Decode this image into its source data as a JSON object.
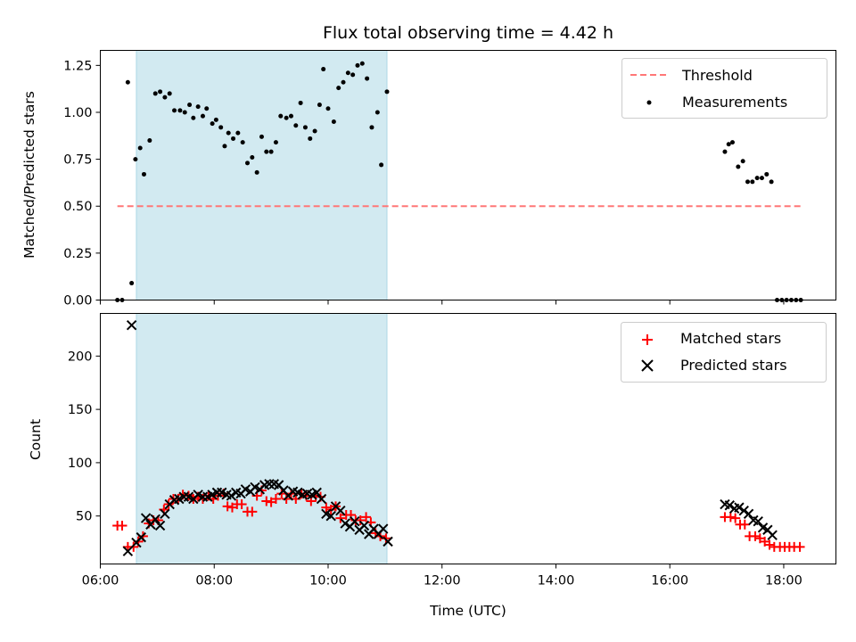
{
  "chart_data": [
    {
      "type": "scatter",
      "title": "Flux total observing time = 4.42 h",
      "xlabel": "",
      "ylabel": "Matched/Predicted stars",
      "xlim": [
        "06:00",
        "18:55"
      ],
      "ylim": [
        0,
        1.33
      ],
      "yticks": [
        "0.00",
        "0.25",
        "0.50",
        "0.75",
        "1.00",
        "1.25"
      ],
      "shaded_span": [
        "06:38",
        "11:02"
      ],
      "grid": false,
      "legend_position": "top-right",
      "threshold": {
        "name": "Threshold",
        "value": 0.5,
        "x_range": [
          "06:18",
          "18:18"
        ],
        "color": "#ff7777"
      },
      "series": [
        {
          "name": "Measurements",
          "color": "#000000",
          "points": [
            [
              "06:18",
              0.0
            ],
            [
              "06:23",
              0.0
            ],
            [
              "06:29",
              1.16
            ],
            [
              "06:33",
              0.09
            ],
            [
              "06:37",
              0.75
            ],
            [
              "06:42",
              0.81
            ],
            [
              "06:46",
              0.67
            ],
            [
              "06:52",
              0.85
            ],
            [
              "06:58",
              1.1
            ],
            [
              "07:03",
              1.11
            ],
            [
              "07:08",
              1.08
            ],
            [
              "07:13",
              1.1
            ],
            [
              "07:18",
              1.01
            ],
            [
              "07:24",
              1.01
            ],
            [
              "07:29",
              1.0
            ],
            [
              "07:34",
              1.04
            ],
            [
              "07:38",
              0.97
            ],
            [
              "07:43",
              1.03
            ],
            [
              "07:48",
              0.98
            ],
            [
              "07:52",
              1.02
            ],
            [
              "07:58",
              0.94
            ],
            [
              "08:02",
              0.96
            ],
            [
              "08:07",
              0.92
            ],
            [
              "08:11",
              0.82
            ],
            [
              "08:15",
              0.89
            ],
            [
              "08:20",
              0.86
            ],
            [
              "08:25",
              0.89
            ],
            [
              "08:30",
              0.84
            ],
            [
              "08:35",
              0.73
            ],
            [
              "08:40",
              0.76
            ],
            [
              "08:45",
              0.68
            ],
            [
              "08:50",
              0.87
            ],
            [
              "08:55",
              0.79
            ],
            [
              "09:00",
              0.79
            ],
            [
              "09:05",
              0.84
            ],
            [
              "09:10",
              0.98
            ],
            [
              "09:16",
              0.97
            ],
            [
              "09:21",
              0.98
            ],
            [
              "09:26",
              0.93
            ],
            [
              "09:31",
              1.05
            ],
            [
              "09:36",
              0.92
            ],
            [
              "09:41",
              0.86
            ],
            [
              "09:46",
              0.9
            ],
            [
              "09:51",
              1.04
            ],
            [
              "09:55",
              1.23
            ],
            [
              "10:00",
              1.02
            ],
            [
              "10:06",
              0.95
            ],
            [
              "10:11",
              1.13
            ],
            [
              "10:16",
              1.16
            ],
            [
              "10:21",
              1.21
            ],
            [
              "10:26",
              1.2
            ],
            [
              "10:31",
              1.25
            ],
            [
              "10:36",
              1.26
            ],
            [
              "10:41",
              1.18
            ],
            [
              "10:46",
              0.92
            ],
            [
              "10:52",
              1.0
            ],
            [
              "10:56",
              0.72
            ],
            [
              "11:02",
              1.11
            ],
            [
              "16:58",
              0.79
            ],
            [
              "17:02",
              0.83
            ],
            [
              "17:06",
              0.84
            ],
            [
              "17:12",
              0.71
            ],
            [
              "17:17",
              0.74
            ],
            [
              "17:22",
              0.63
            ],
            [
              "17:27",
              0.63
            ],
            [
              "17:32",
              0.65
            ],
            [
              "17:37",
              0.65
            ],
            [
              "17:42",
              0.67
            ],
            [
              "17:47",
              0.63
            ],
            [
              "17:53",
              0.0
            ],
            [
              "17:58",
              0.0
            ],
            [
              "18:03",
              0.0
            ],
            [
              "18:08",
              0.0
            ],
            [
              "18:13",
              0.0
            ],
            [
              "18:18",
              0.0
            ]
          ]
        }
      ]
    },
    {
      "type": "scatter",
      "title": "",
      "xlabel": "Time (UTC)",
      "ylabel": "Count",
      "xlim": [
        "06:00",
        "18:55"
      ],
      "ylim": [
        5,
        240
      ],
      "xticks": [
        "06:00",
        "08:00",
        "10:00",
        "12:00",
        "14:00",
        "16:00",
        "18:00"
      ],
      "yticks": [
        "50",
        "100",
        "150",
        "200"
      ],
      "shaded_span": [
        "06:38",
        "11:02"
      ],
      "grid": false,
      "legend_position": "top-right",
      "series": [
        {
          "name": "Matched stars",
          "marker": "plus",
          "color": "#ff0000",
          "points": [
            [
              "06:18",
              41
            ],
            [
              "06:23",
              41
            ],
            [
              "06:29",
              21
            ],
            [
              "06:35",
              21
            ],
            [
              "06:40",
              26
            ],
            [
              "06:45",
              31
            ],
            [
              "06:51",
              43
            ],
            [
              "06:56",
              46
            ],
            [
              "07:01",
              46
            ],
            [
              "07:07",
              56
            ],
            [
              "07:12",
              61
            ],
            [
              "07:17",
              66
            ],
            [
              "07:22",
              66
            ],
            [
              "07:27",
              70
            ],
            [
              "07:33",
              69
            ],
            [
              "07:38",
              66
            ],
            [
              "07:43",
              68
            ],
            [
              "07:48",
              66
            ],
            [
              "07:54",
              69
            ],
            [
              "07:59",
              66
            ],
            [
              "08:04",
              69
            ],
            [
              "08:10",
              71
            ],
            [
              "08:14",
              59
            ],
            [
              "08:19",
              58
            ],
            [
              "08:24",
              61
            ],
            [
              "08:29",
              61
            ],
            [
              "08:35",
              54
            ],
            [
              "08:40",
              54
            ],
            [
              "08:45",
              69
            ],
            [
              "08:50",
              74
            ],
            [
              "08:55",
              64
            ],
            [
              "09:00",
              63
            ],
            [
              "09:05",
              66
            ],
            [
              "09:11",
              71
            ],
            [
              "09:16",
              66
            ],
            [
              "09:21",
              71
            ],
            [
              "09:26",
              66
            ],
            [
              "09:32",
              71
            ],
            [
              "09:37",
              69
            ],
            [
              "09:42",
              64
            ],
            [
              "09:47",
              68
            ],
            [
              "09:52",
              68
            ],
            [
              "09:58",
              58
            ],
            [
              "10:03",
              56
            ],
            [
              "10:08",
              59
            ],
            [
              "10:13",
              48
            ],
            [
              "10:19",
              51
            ],
            [
              "10:24",
              51
            ],
            [
              "10:29",
              46
            ],
            [
              "10:34",
              46
            ],
            [
              "10:40",
              49
            ],
            [
              "10:45",
              44
            ],
            [
              "10:50",
              34
            ],
            [
              "10:55",
              31
            ],
            [
              "11:01",
              29
            ],
            [
              "16:58",
              49
            ],
            [
              "17:04",
              49
            ],
            [
              "17:09",
              48
            ],
            [
              "17:14",
              42
            ],
            [
              "17:19",
              42
            ],
            [
              "17:24",
              31
            ],
            [
              "17:30",
              31
            ],
            [
              "17:35",
              29
            ],
            [
              "17:40",
              26
            ],
            [
              "17:45",
              23
            ],
            [
              "17:50",
              21
            ],
            [
              "17:56",
              21
            ],
            [
              "18:01",
              21
            ],
            [
              "18:06",
              21
            ],
            [
              "18:11",
              21
            ],
            [
              "18:17",
              21
            ]
          ]
        },
        {
          "name": "Predicted stars",
          "marker": "x",
          "color": "#000000",
          "points": [
            [
              "06:29",
              17
            ],
            [
              "06:33",
              229
            ],
            [
              "06:38",
              25
            ],
            [
              "06:43",
              30
            ],
            [
              "06:48",
              48
            ],
            [
              "06:53",
              42
            ],
            [
              "06:58",
              47
            ],
            [
              "07:03",
              41
            ],
            [
              "07:08",
              52
            ],
            [
              "07:13",
              61
            ],
            [
              "07:18",
              65
            ],
            [
              "07:23",
              66
            ],
            [
              "07:28",
              68
            ],
            [
              "07:33",
              68
            ],
            [
              "07:38",
              66
            ],
            [
              "07:43",
              70
            ],
            [
              "07:48",
              68
            ],
            [
              "07:53",
              68
            ],
            [
              "07:58",
              70
            ],
            [
              "08:03",
              72
            ],
            [
              "08:08",
              72
            ],
            [
              "08:13",
              70
            ],
            [
              "08:18",
              69
            ],
            [
              "08:23",
              72
            ],
            [
              "08:28",
              71
            ],
            [
              "08:33",
              75
            ],
            [
              "08:38",
              73
            ],
            [
              "08:43",
              77
            ],
            [
              "08:48",
              75
            ],
            [
              "08:53",
              79
            ],
            [
              "08:58",
              80
            ],
            [
              "09:03",
              80
            ],
            [
              "09:08",
              79
            ],
            [
              "09:13",
              74
            ],
            [
              "09:18",
              69
            ],
            [
              "09:23",
              73
            ],
            [
              "09:28",
              72
            ],
            [
              "09:33",
              70
            ],
            [
              "09:38",
              71
            ],
            [
              "09:43",
              70
            ],
            [
              "09:48",
              72
            ],
            [
              "09:53",
              66
            ],
            [
              "09:58",
              52
            ],
            [
              "10:03",
              50
            ],
            [
              "10:08",
              59
            ],
            [
              "10:13",
              55
            ],
            [
              "10:18",
              43
            ],
            [
              "10:23",
              40
            ],
            [
              "10:28",
              45
            ],
            [
              "10:33",
              37
            ],
            [
              "10:38",
              41
            ],
            [
              "10:43",
              33
            ],
            [
              "10:48",
              38
            ],
            [
              "10:53",
              33
            ],
            [
              "10:58",
              38
            ],
            [
              "11:03",
              26
            ],
            [
              "16:58",
              61
            ],
            [
              "17:03",
              60
            ],
            [
              "17:08",
              57
            ],
            [
              "17:13",
              58
            ],
            [
              "17:18",
              55
            ],
            [
              "17:23",
              52
            ],
            [
              "17:28",
              46
            ],
            [
              "17:33",
              45
            ],
            [
              "17:38",
              39
            ],
            [
              "17:43",
              37
            ],
            [
              "17:48",
              32
            ]
          ]
        }
      ]
    }
  ]
}
